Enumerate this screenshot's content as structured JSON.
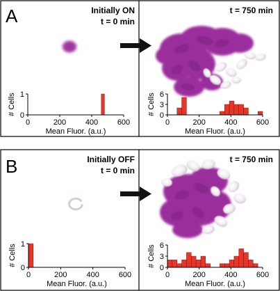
{
  "panels": [
    {
      "letter": "A",
      "initial": {
        "title": "Initially ON",
        "time": "t = 0 min"
      },
      "final": {
        "time": "t = 750 min"
      }
    },
    {
      "letter": "B",
      "initial": {
        "title": "Initially OFF",
        "time": "t = 0 min"
      },
      "final": {
        "time": "t = 750 min"
      }
    }
  ],
  "chart_data": [
    {
      "type": "bar",
      "panel": "A",
      "condition": "Initially ON",
      "time": "t = 0 min",
      "xlabel": "Mean Fluor. (a.u.)",
      "ylabel": "# Cells",
      "xlim": [
        0,
        600
      ],
      "ylim": [
        0,
        1
      ],
      "xticks": [
        0,
        200,
        400,
        600
      ],
      "yticks": [
        0,
        1
      ],
      "bin_width": 20,
      "bins": [
        {
          "x": 460,
          "count": 1
        }
      ],
      "color": "#e8352a"
    },
    {
      "type": "bar",
      "panel": "A",
      "condition": "Initially ON",
      "time": "t = 750 min",
      "xlabel": "Mean Fluor. (a.u.)",
      "ylabel": "# Cells",
      "xlim": [
        0,
        600
      ],
      "ylim": [
        0,
        6
      ],
      "xticks": [
        0,
        200,
        400,
        600
      ],
      "yticks": [
        0,
        3,
        6
      ],
      "bin_width": 30,
      "bins": [
        {
          "x": 60,
          "count": 2
        },
        {
          "x": 90,
          "count": 5
        },
        {
          "x": 330,
          "count": 1
        },
        {
          "x": 360,
          "count": 3
        },
        {
          "x": 390,
          "count": 4
        },
        {
          "x": 420,
          "count": 3
        },
        {
          "x": 450,
          "count": 3
        },
        {
          "x": 480,
          "count": 2
        },
        {
          "x": 570,
          "count": 1
        }
      ],
      "color": "#e8352a"
    },
    {
      "type": "bar",
      "panel": "B",
      "condition": "Initially OFF",
      "time": "t = 0 min",
      "xlabel": "Mean Fluor. (a.u.)",
      "ylabel": "# Cells",
      "xlim": [
        0,
        600
      ],
      "ylim": [
        0,
        1
      ],
      "xticks": [
        0,
        200,
        400,
        600
      ],
      "yticks": [
        0,
        1
      ],
      "bin_width": 30,
      "bins": [
        {
          "x": 0,
          "count": 1
        }
      ],
      "color": "#e8352a"
    },
    {
      "type": "bar",
      "panel": "B",
      "condition": "Initially OFF",
      "time": "t = 750 min",
      "xlabel": "Mean Fluor. (a.u.)",
      "ylabel": "# Cells",
      "xlim": [
        0,
        600
      ],
      "ylim": [
        0,
        6
      ],
      "xticks": [
        0,
        200,
        400,
        600
      ],
      "yticks": [
        0,
        3,
        6
      ],
      "bin_width": 30,
      "bins": [
        {
          "x": 0,
          "count": 2
        },
        {
          "x": 30,
          "count": 2
        },
        {
          "x": 60,
          "count": 1
        },
        {
          "x": 90,
          "count": 2
        },
        {
          "x": 120,
          "count": 4
        },
        {
          "x": 150,
          "count": 3
        },
        {
          "x": 180,
          "count": 2
        },
        {
          "x": 210,
          "count": 3
        },
        {
          "x": 240,
          "count": 1
        },
        {
          "x": 330,
          "count": 1
        },
        {
          "x": 360,
          "count": 1
        },
        {
          "x": 390,
          "count": 2
        },
        {
          "x": 420,
          "count": 3
        },
        {
          "x": 450,
          "count": 5
        },
        {
          "x": 480,
          "count": 4
        },
        {
          "x": 510,
          "count": 2
        },
        {
          "x": 540,
          "count": 1
        }
      ],
      "color": "#e8352a"
    }
  ]
}
